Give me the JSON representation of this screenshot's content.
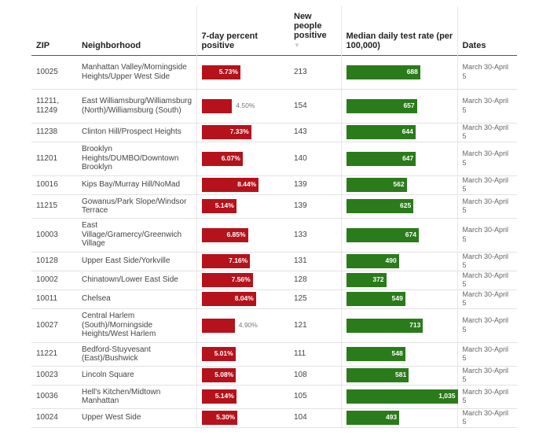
{
  "chart_data": {
    "type": "table",
    "columns": {
      "zip": "ZIP",
      "neighborhood": "Neighborhood",
      "pct": "7-day percent positive",
      "new_positive": "New people positive",
      "sort_indicator": "▼",
      "rate": "Median daily test rate (per 100,000)",
      "dates": "Dates"
    },
    "pct_scale_max": 11.6,
    "rate_scale_max": 1035,
    "colors": {
      "pct_bar": "#b5121b",
      "rate_bar": "#2a7b1a"
    },
    "rows": [
      {
        "zip": "10025",
        "neighborhood": "Manhattan Valley/Morningside Heights/Upper West Side",
        "pct": 5.73,
        "pct_label": "5.73%",
        "new_positive": "213",
        "rate": 688,
        "rate_label": "688",
        "dates": "March 30-April 5"
      },
      {
        "zip": "11211, 11249",
        "neighborhood": "East Williamsburg/Williamsburg (North)/Williamsburg (South)",
        "pct": 4.5,
        "pct_label": "4.50%",
        "new_positive": "154",
        "rate": 657,
        "rate_label": "657",
        "dates": "March 30-April 5"
      },
      {
        "zip": "11238",
        "neighborhood": "Clinton Hill/Prospect Heights",
        "pct": 7.33,
        "pct_label": "7.33%",
        "new_positive": "143",
        "rate": 644,
        "rate_label": "644",
        "dates": "March 30-April 5"
      },
      {
        "zip": "11201",
        "neighborhood": "Brooklyn Heights/DUMBO/Downtown Brooklyn",
        "pct": 6.07,
        "pct_label": "6.07%",
        "new_positive": "140",
        "rate": 647,
        "rate_label": "647",
        "dates": "March 30-April 5"
      },
      {
        "zip": "10016",
        "neighborhood": "Kips Bay/Murray Hill/NoMad",
        "pct": 8.44,
        "pct_label": "8.44%",
        "new_positive": "139",
        "rate": 562,
        "rate_label": "562",
        "dates": "March 30-April 5"
      },
      {
        "zip": "11215",
        "neighborhood": "Gowanus/Park Slope/Windsor Terrace",
        "pct": 5.14,
        "pct_label": "5.14%",
        "new_positive": "139",
        "rate": 625,
        "rate_label": "625",
        "dates": "March 30-April 5"
      },
      {
        "zip": "10003",
        "neighborhood": "East Village/Gramercy/Greenwich Village",
        "pct": 6.85,
        "pct_label": "6.85%",
        "new_positive": "133",
        "rate": 674,
        "rate_label": "674",
        "dates": "March 30-April 5"
      },
      {
        "zip": "10128",
        "neighborhood": "Upper East Side/Yorkville",
        "pct": 7.16,
        "pct_label": "7.16%",
        "new_positive": "131",
        "rate": 490,
        "rate_label": "490",
        "dates": "March 30-April 5"
      },
      {
        "zip": "10002",
        "neighborhood": "Chinatown/Lower East Side",
        "pct": 7.56,
        "pct_label": "7.56%",
        "new_positive": "128",
        "rate": 372,
        "rate_label": "372",
        "dates": "March 30-April 5"
      },
      {
        "zip": "10011",
        "neighborhood": "Chelsea",
        "pct": 8.04,
        "pct_label": "8.04%",
        "new_positive": "125",
        "rate": 549,
        "rate_label": "549",
        "dates": "March 30-April 5"
      },
      {
        "zip": "10027",
        "neighborhood": "Central Harlem (South)/Morningside Heights/West Harlem",
        "pct": 4.9,
        "pct_label": "4.90%",
        "new_positive": "121",
        "rate": 713,
        "rate_label": "713",
        "dates": "March 30-April 5"
      },
      {
        "zip": "11221",
        "neighborhood": "Bedford-Stuyvesant (East)/Bushwick",
        "pct": 5.01,
        "pct_label": "5.01%",
        "new_positive": "111",
        "rate": 548,
        "rate_label": "548",
        "dates": "March 30-April 5"
      },
      {
        "zip": "10023",
        "neighborhood": "Lincoln Square",
        "pct": 5.08,
        "pct_label": "5.08%",
        "new_positive": "108",
        "rate": 581,
        "rate_label": "581",
        "dates": "March 30-April 5"
      },
      {
        "zip": "10036",
        "neighborhood": "Hell's Kitchen/Midtown Manhattan",
        "pct": 5.14,
        "pct_label": "5.14%",
        "new_positive": "105",
        "rate": 1035,
        "rate_label": "1,035",
        "dates": "March 30-April 5"
      },
      {
        "zip": "10024",
        "neighborhood": "Upper West Side",
        "pct": 5.3,
        "pct_label": "5.30%",
        "new_positive": "104",
        "rate": 493,
        "rate_label": "493",
        "dates": "March 30-April 5"
      }
    ]
  }
}
